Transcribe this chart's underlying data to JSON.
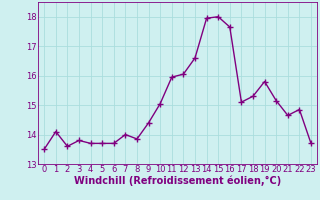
{
  "x": [
    0,
    1,
    2,
    3,
    4,
    5,
    6,
    7,
    8,
    9,
    10,
    11,
    12,
    13,
    14,
    15,
    16,
    17,
    18,
    19,
    20,
    21,
    22,
    23
  ],
  "y": [
    13.5,
    14.1,
    13.6,
    13.8,
    13.7,
    13.7,
    13.7,
    14.0,
    13.85,
    14.4,
    15.05,
    15.95,
    16.05,
    16.6,
    17.95,
    18.0,
    17.65,
    15.1,
    15.3,
    15.8,
    15.15,
    14.65,
    14.85,
    13.7
  ],
  "line_color": "#800080",
  "marker": "+",
  "marker_size": 4,
  "bg_color": "#cff0f0",
  "grid_color": "#aadddd",
  "xlabel": "Windchill (Refroidissement éolien,°C)",
  "ylim": [
    13,
    18.5
  ],
  "xlim": [
    -0.5,
    23.5
  ],
  "yticks": [
    13,
    14,
    15,
    16,
    17,
    18
  ],
  "xticks": [
    0,
    1,
    2,
    3,
    4,
    5,
    6,
    7,
    8,
    9,
    10,
    11,
    12,
    13,
    14,
    15,
    16,
    17,
    18,
    19,
    20,
    21,
    22,
    23
  ],
  "tick_label_color": "#800080",
  "tick_label_fontsize": 6,
  "xlabel_fontsize": 7,
  "line_width": 1.0
}
